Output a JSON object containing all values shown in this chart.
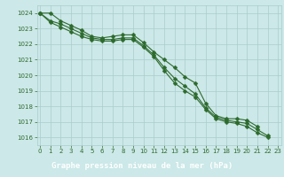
{
  "title": "Graphe pression niveau de la mer (hPa)",
  "x": [
    0,
    1,
    2,
    3,
    4,
    5,
    6,
    7,
    8,
    9,
    10,
    11,
    12,
    13,
    14,
    15,
    16,
    17,
    18,
    19,
    20,
    21,
    22,
    23
  ],
  "line1": [
    1024.0,
    1024.0,
    1023.5,
    1023.2,
    1022.9,
    1022.5,
    1022.4,
    1022.5,
    1022.6,
    1022.6,
    1022.1,
    1021.5,
    1021.0,
    1020.5,
    1019.9,
    1019.5,
    1018.2,
    1017.4,
    1017.2,
    1017.2,
    1017.1,
    1016.7,
    null,
    null
  ],
  "line2": [
    1024.0,
    1023.5,
    1023.3,
    1023.0,
    1022.7,
    1022.4,
    1022.3,
    1022.3,
    1022.4,
    1022.4,
    1021.9,
    1021.3,
    1020.5,
    1019.8,
    1019.3,
    1018.8,
    1017.9,
    1017.3,
    1017.1,
    1017.0,
    1016.9,
    1016.5,
    1016.1,
    null
  ],
  "line3": [
    1024.0,
    1023.4,
    1023.1,
    1022.8,
    1022.5,
    1022.3,
    1022.2,
    1022.2,
    1022.3,
    1022.3,
    1021.8,
    1021.2,
    1020.3,
    1019.5,
    1019.0,
    1018.6,
    1017.8,
    1017.2,
    1017.0,
    1016.9,
    1016.7,
    1016.3,
    1016.0,
    null
  ],
  "ylim": [
    1015.5,
    1024.5
  ],
  "xlim": [
    -0.3,
    23.3
  ],
  "yticks": [
    1016,
    1017,
    1018,
    1019,
    1020,
    1021,
    1022,
    1023,
    1024
  ],
  "xticks": [
    0,
    1,
    2,
    3,
    4,
    5,
    6,
    7,
    8,
    9,
    10,
    11,
    12,
    13,
    14,
    15,
    16,
    17,
    18,
    19,
    20,
    21,
    22,
    23
  ],
  "line_color": "#2d6a2d",
  "bg_color": "#cce8e8",
  "grid_color": "#aacccc",
  "title_bg": "#2d6a2d",
  "title_color": "#ffffff",
  "marker_size": 2.5,
  "linewidth": 0.8
}
